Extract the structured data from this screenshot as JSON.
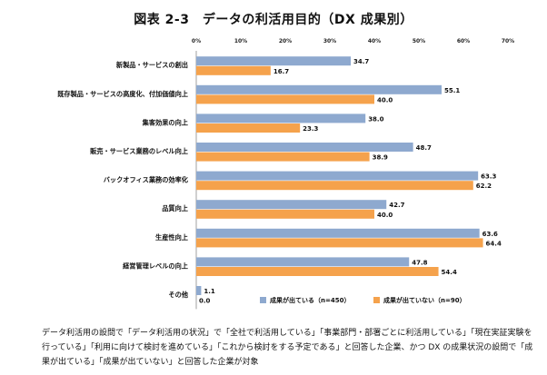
{
  "chart_data": {
    "type": "bar",
    "orientation": "horizontal",
    "title": "図表 2-3　データの利活用目的（DX 成果別）",
    "xlim": [
      0,
      70
    ],
    "xticks": [
      "0%",
      "10%",
      "20%",
      "30%",
      "40%",
      "50%",
      "60%",
      "70%"
    ],
    "categories": [
      "新製品・サービスの創出",
      "既存製品・サービスの高度化、付加価値向上",
      "集客効果の向上",
      "販売・サービス業務のレベル向上",
      "バックオフィス業務の効率化",
      "品質向上",
      "生産性向上",
      "経営管理レベルの向上",
      "その他"
    ],
    "series": [
      {
        "name": "成果が出ている（n=450）",
        "color": "#8ea9cf",
        "values": [
          34.7,
          55.1,
          38.0,
          48.7,
          63.3,
          42.7,
          63.6,
          47.8,
          1.1
        ],
        "labels": [
          "34.7",
          "55.1",
          "38.0",
          "48.7",
          "63.3",
          "42.7",
          "63.6",
          "47.8",
          "1.1"
        ]
      },
      {
        "name": "成果が出ていない（n=90）",
        "color": "#f5a24c",
        "values": [
          16.7,
          40.0,
          23.3,
          38.9,
          62.2,
          40.0,
          64.4,
          54.4,
          0.0
        ],
        "labels": [
          "16.7",
          "40.0",
          "23.3",
          "38.9",
          "62.2",
          "40.0",
          "64.4",
          "54.4",
          "0.0"
        ]
      }
    ],
    "legend_position": "bottom"
  },
  "note": "データ利活用の設問で「データ利活用の状況」で「全社で利活用している」「事業部門・部署ごとに利活用している」「現在実証実験を行っている」「利用に向けて検討を進めている」「これから検討をする予定である」と回答した企業、かつ DX の成果状況の設問で「成果が出ている」「成果が出ていない」と回答した企業が対象"
}
